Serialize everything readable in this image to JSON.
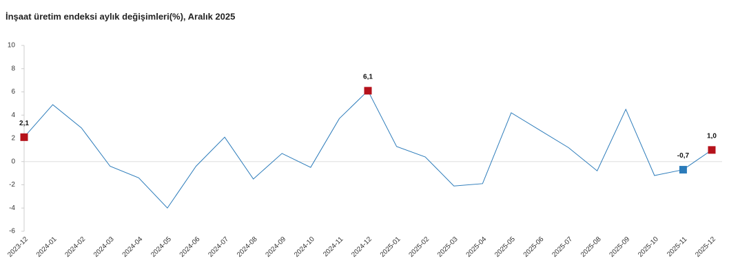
{
  "chart_data": {
    "type": "line",
    "title": "İnşaat üretim endeksi aylık değişimleri(%), Aralık 2025",
    "categories": [
      "2023-12",
      "2024-01",
      "2024-02",
      "2024-03",
      "2024-04",
      "2024-05",
      "2024-06",
      "2024-07",
      "2024-08",
      "2024-09",
      "2024-10",
      "2024-11",
      "2024-12",
      "2025-01",
      "2025-02",
      "2025-03",
      "2025-04",
      "2025-05",
      "2025-06",
      "2025-07",
      "2025-08",
      "2025-09",
      "2025-10",
      "2025-11",
      "2025-12"
    ],
    "values": [
      2.1,
      4.9,
      2.9,
      -0.4,
      -1.4,
      -4.0,
      -0.4,
      2.1,
      -1.5,
      0.7,
      -0.5,
      3.7,
      6.1,
      1.3,
      0.4,
      -2.1,
      -1.9,
      4.2,
      2.7,
      1.2,
      -0.8,
      4.5,
      -1.2,
      -0.7,
      1.0
    ],
    "value_labels": [
      "2,1",
      null,
      null,
      null,
      null,
      null,
      null,
      null,
      null,
      null,
      null,
      null,
      "6,1",
      null,
      null,
      null,
      null,
      null,
      null,
      null,
      null,
      null,
      null,
      "-0,7",
      "1,0"
    ],
    "marker_colors": [
      "#b5121b",
      null,
      null,
      null,
      null,
      null,
      null,
      null,
      null,
      null,
      null,
      null,
      "#b5121b",
      null,
      null,
      null,
      null,
      null,
      null,
      null,
      null,
      null,
      null,
      "#2b7bba",
      "#b5121b"
    ],
    "color": "#2b7bba",
    "ylim": [
      -6,
      10
    ],
    "yticks": [
      -6,
      -4,
      -2,
      0,
      2,
      4,
      6,
      8,
      10
    ],
    "grid": false
  }
}
